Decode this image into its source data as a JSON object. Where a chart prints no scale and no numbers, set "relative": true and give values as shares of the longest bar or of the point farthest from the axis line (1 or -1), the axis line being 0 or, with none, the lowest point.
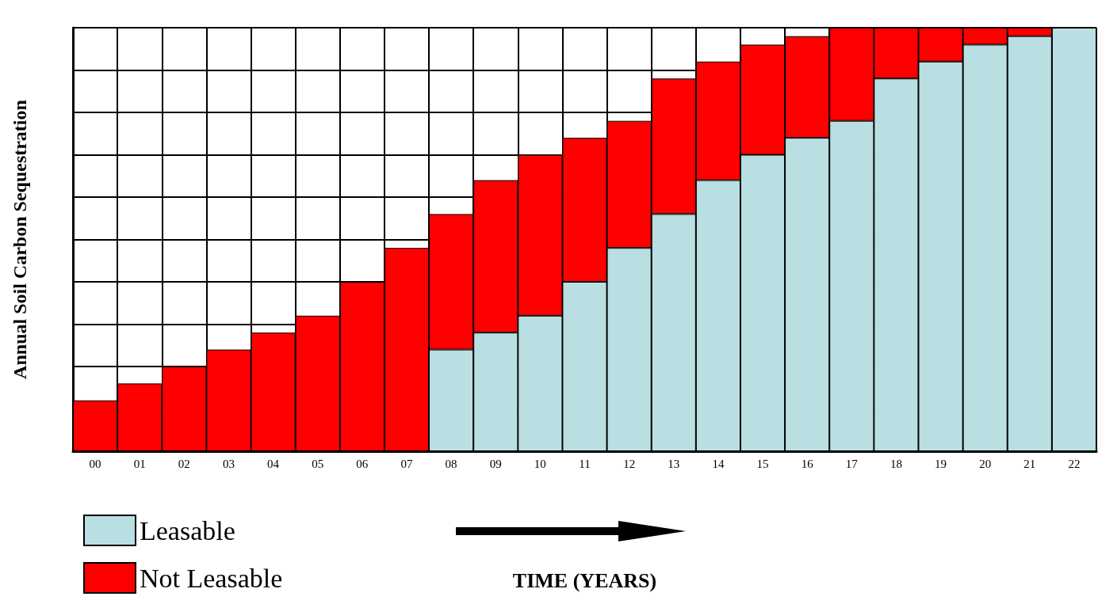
{
  "chart_data": {
    "type": "bar",
    "stacked": true,
    "relative": true,
    "grid": true,
    "legend": "bottom left",
    "xlabel": "TIME (YEARS)",
    "ylabel": "Annual Soil Carbon Sequestration",
    "categories": [
      "00",
      "01",
      "02",
      "03",
      "04",
      "05",
      "06",
      "07",
      "08",
      "09",
      "10",
      "11",
      "12",
      "13",
      "14",
      "15",
      "16",
      "17",
      "18",
      "19",
      "20",
      "21",
      "22"
    ],
    "series": [
      {
        "name": "Leasable",
        "color": "#b9dfe2",
        "values": [
          0,
          0,
          0,
          0,
          0,
          0,
          0,
          0,
          0.24,
          0.28,
          0.32,
          0.4,
          0.48,
          0.56,
          0.64,
          0.7,
          0.74,
          0.78,
          0.88,
          0.92,
          0.96,
          0.98,
          1.0
        ]
      },
      {
        "name": "Not Leasable",
        "color": "#ff0000",
        "values": [
          0.12,
          0.16,
          0.2,
          0.24,
          0.28,
          0.32,
          0.4,
          0.48,
          0.32,
          0.36,
          0.38,
          0.34,
          0.3,
          0.32,
          0.28,
          0.26,
          0.24,
          0.22,
          0.12,
          0.08,
          0.04,
          0.02,
          0
        ]
      }
    ]
  }
}
